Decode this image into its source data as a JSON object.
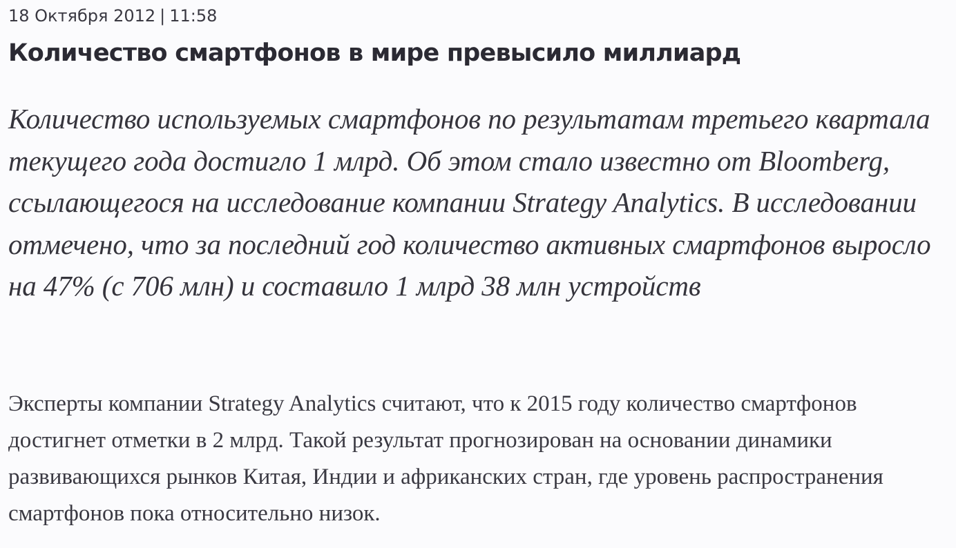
{
  "article": {
    "date": "18 Октября 2012",
    "separator": "|",
    "time": "11:58",
    "title": "Количество смартфонов в мире превысило миллиард",
    "lead": "Количество используемых смартфонов по результатам третьего квартала текущего года достигло 1 млрд. Об этом стало известно от Bloomberg, ссылающегося на исследование компании Strategy Analytics. В исследовании отмечено, что за последний год количество активных смартфонов выросло на 47% (с 706 млн) и составило 1 млрд 38 млн устройств",
    "body": "Эксперты компании Strategy Analytics считают, что к 2015 году количество смартфонов достигнет отметки в 2 млрд. Такой результат прогнозирован на основании динамики развивающихся рынков Китая, Индии и африканских стран, где уровень распространения смартфонов пока относительно низок."
  }
}
